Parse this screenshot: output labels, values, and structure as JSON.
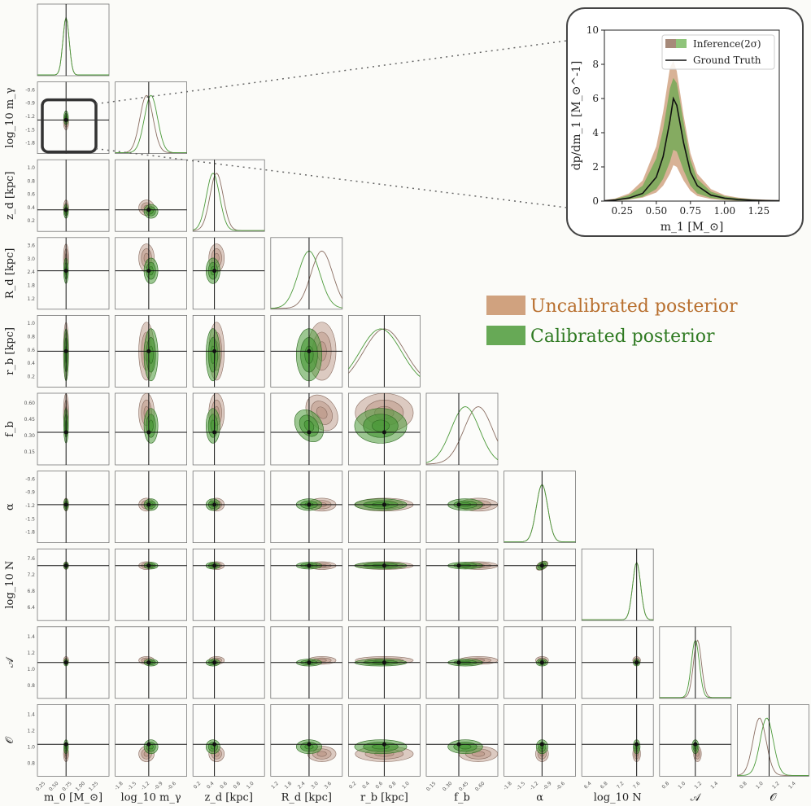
{
  "chart_data": {
    "type": "corner",
    "parameters": [
      {
        "name": "m0",
        "xlabel": "m_0 [M_⊙]",
        "ylabel": "",
        "truth": 0.62,
        "range": [
          0.1,
          1.4
        ],
        "xticks": [
          "0.25",
          "0.50",
          "0.75",
          "1.00",
          "1.25"
        ],
        "yticks": []
      },
      {
        "name": "log10_m_gamma",
        "xlabel": "log_10 m_γ",
        "ylabel": "log_10 m_γ",
        "truth": -1.35,
        "range": [
          -2.1,
          -0.5
        ],
        "xticks": [
          "-1.8",
          "-1.5",
          "-1.2",
          "-0.9",
          "-0.6"
        ],
        "yticks": [
          "-0.6",
          "-0.9",
          "-1.2",
          "-1.5",
          "-1.8"
        ]
      },
      {
        "name": "z_d",
        "xlabel": "z_d [kpc]",
        "ylabel": "z_d [kpc]",
        "truth": 0.3,
        "range": [
          0.0,
          1.0
        ],
        "xticks": [
          "0.2",
          "0.4",
          "0.6",
          "0.8",
          "1.0"
        ],
        "yticks": [
          "1.0",
          "0.8",
          "0.6",
          "0.4",
          "0.2"
        ]
      },
      {
        "name": "R_d",
        "xlabel": "R_d [kpc]",
        "ylabel": "R_d [kpc]",
        "truth": 2.5,
        "range": [
          1.0,
          3.8
        ],
        "xticks": [
          "1.2",
          "1.8",
          "2.4",
          "3.0",
          "3.6"
        ],
        "yticks": [
          "3.6",
          "3.0",
          "2.4",
          "1.8",
          "1.2"
        ]
      },
      {
        "name": "r_b",
        "xlabel": "r_b [kpc]",
        "ylabel": "r_b [kpc]",
        "truth": 0.5,
        "range": [
          0.0,
          1.0
        ],
        "xticks": [
          "0.2",
          "0.4",
          "0.6",
          "0.8",
          "1.0"
        ],
        "yticks": [
          "1.0",
          "0.8",
          "0.6",
          "0.4",
          "0.2"
        ]
      },
      {
        "name": "f_b",
        "xlabel": "f_b",
        "ylabel": "f_b",
        "truth": 0.3,
        "range": [
          0.05,
          0.6
        ],
        "xticks": [
          "0.15",
          "0.30",
          "0.45",
          "0.60"
        ],
        "yticks": [
          "0.60",
          "0.45",
          "0.30",
          "0.15"
        ]
      },
      {
        "name": "alpha",
        "xlabel": "α",
        "ylabel": "α",
        "truth": -1.25,
        "range": [
          -2.1,
          -0.5
        ],
        "xticks": [
          "-1.8",
          "-1.5",
          "-1.2",
          "-0.9",
          "-0.6"
        ],
        "yticks": [
          "-0.6",
          "-0.9",
          "-1.2",
          "-1.5",
          "-1.8"
        ]
      },
      {
        "name": "log10_N",
        "xlabel": "log_10 N",
        "ylabel": "log_10 N",
        "truth": 7.45,
        "range": [
          6.3,
          7.8
        ],
        "xticks": [
          "6.4",
          "6.8",
          "7.2",
          "7.6"
        ],
        "yticks": [
          "7.6",
          "7.2",
          "6.8",
          "6.4"
        ]
      },
      {
        "name": "A",
        "xlabel": "𝒜",
        "ylabel": "𝒜",
        "truth": 1.0,
        "range": [
          0.5,
          1.5
        ],
        "xticks": [
          "0.8",
          "1.0",
          "1.2",
          "1.4"
        ],
        "yticks": [
          "1.4",
          "1.2",
          "1.0",
          "0.8"
        ]
      },
      {
        "name": "O",
        "xlabel": "𝒪",
        "ylabel": "𝒪",
        "truth": 1.0,
        "range": [
          0.6,
          1.5
        ],
        "xticks": [
          "0.8",
          "1.0",
          "1.2",
          "1.4"
        ],
        "yticks": [
          "1.4",
          "1.2",
          "1.0",
          "0.8"
        ]
      }
    ],
    "marginals_mode": {
      "uncalibrated": [
        0.62,
        -1.4,
        0.33,
        3.0,
        0.5,
        0.45,
        -1.25,
        7.45,
        1.03,
        0.88
      ],
      "calibrated": [
        0.62,
        -1.3,
        0.28,
        2.5,
        0.45,
        0.35,
        -1.25,
        7.45,
        1.0,
        0.97
      ]
    },
    "legend": [
      {
        "label": "Uncalibrated posterior",
        "color": "#c8926a",
        "text_color": "#b86f2e"
      },
      {
        "label": "Calibrated posterior",
        "color": "#4c9a3a",
        "text_color": "#2f7a22"
      }
    ],
    "inset": {
      "xlabel": "m_1 [M_⊙]",
      "ylabel": "dp/dm_1 [M_⊙^-1]",
      "xlim": [
        0.12,
        1.4
      ],
      "ylim": [
        0,
        10
      ],
      "xticks": [
        "0.25",
        "0.50",
        "0.75",
        "1.00",
        "1.25"
      ],
      "yticks": [
        "0",
        "2",
        "4",
        "6",
        "8",
        "10"
      ],
      "legend_band": "Inference(2σ)",
      "legend_line": "Ground Truth",
      "ground_truth": {
        "x": [
          0.12,
          0.2,
          0.3,
          0.4,
          0.5,
          0.55,
          0.6,
          0.625,
          0.65,
          0.7,
          0.75,
          0.8,
          0.9,
          1.0,
          1.1,
          1.2,
          1.3,
          1.4
        ],
        "y": [
          0.02,
          0.06,
          0.18,
          0.45,
          1.4,
          2.6,
          4.7,
          6.0,
          5.6,
          3.4,
          1.7,
          0.9,
          0.35,
          0.17,
          0.09,
          0.05,
          0.03,
          0.02
        ]
      },
      "band_uncalibrated": {
        "x": [
          0.12,
          0.2,
          0.3,
          0.4,
          0.5,
          0.55,
          0.6,
          0.625,
          0.65,
          0.7,
          0.75,
          0.8,
          0.9,
          1.0,
          1.1,
          1.2,
          1.3,
          1.4
        ],
        "lower": [
          0.0,
          0.02,
          0.08,
          0.2,
          0.5,
          0.9,
          1.6,
          2.1,
          2.0,
          1.2,
          0.6,
          0.3,
          0.12,
          0.05,
          0.02,
          0.01,
          0.0,
          0.0
        ],
        "upper": [
          0.05,
          0.15,
          0.45,
          1.2,
          3.2,
          5.2,
          7.8,
          8.2,
          7.6,
          5.0,
          2.8,
          1.6,
          0.7,
          0.35,
          0.2,
          0.12,
          0.08,
          0.05
        ]
      },
      "band_calibrated": {
        "x": [
          0.12,
          0.2,
          0.3,
          0.4,
          0.5,
          0.55,
          0.6,
          0.625,
          0.65,
          0.7,
          0.75,
          0.8,
          0.9,
          1.0,
          1.1,
          1.2,
          1.3,
          1.4
        ],
        "lower": [
          0.0,
          0.03,
          0.1,
          0.25,
          0.7,
          1.3,
          2.3,
          3.0,
          2.9,
          1.8,
          0.9,
          0.45,
          0.18,
          0.08,
          0.03,
          0.02,
          0.01,
          0.0
        ],
        "upper": [
          0.04,
          0.12,
          0.35,
          0.9,
          2.5,
          4.2,
          6.6,
          7.2,
          6.9,
          4.6,
          2.4,
          1.3,
          0.55,
          0.28,
          0.16,
          0.1,
          0.06,
          0.04
        ]
      }
    }
  }
}
